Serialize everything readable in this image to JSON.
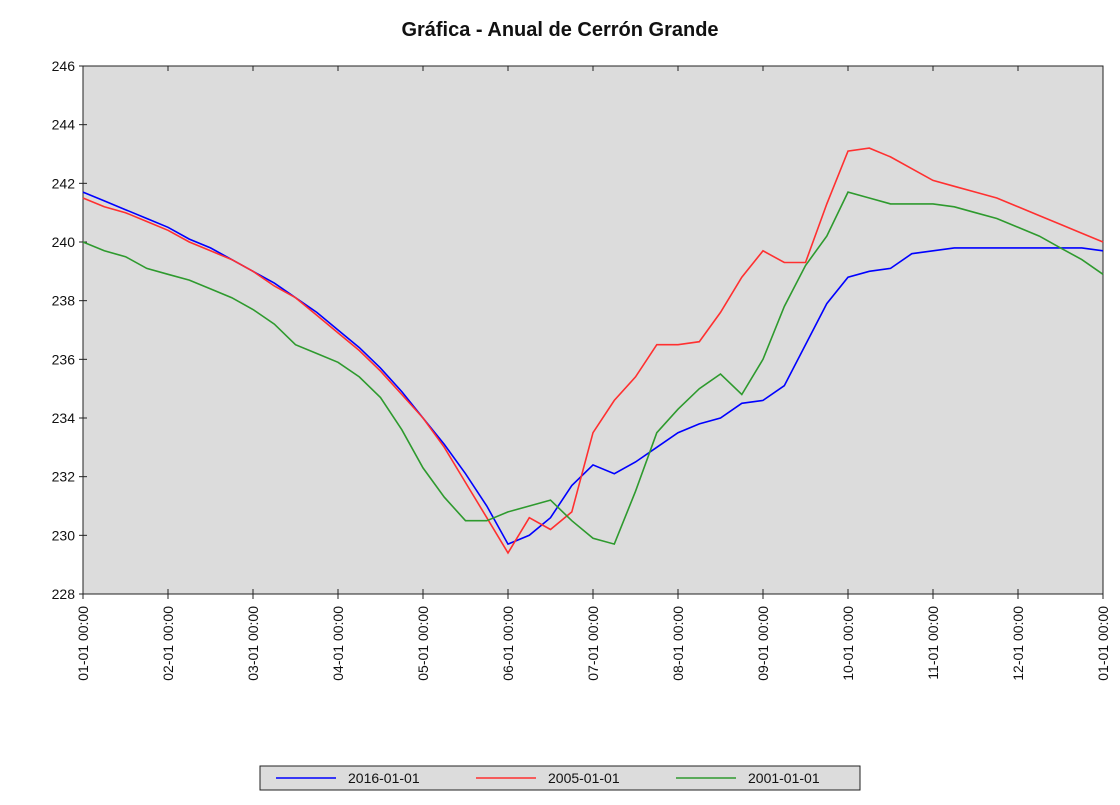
{
  "chart_data": {
    "type": "line",
    "title": "Gráfica - Anual de Cerrón Grande",
    "x": [
      0,
      0.25,
      0.5,
      0.75,
      1,
      1.25,
      1.5,
      1.75,
      2,
      2.25,
      2.5,
      2.75,
      3,
      3.25,
      3.5,
      3.75,
      4,
      4.25,
      4.5,
      4.75,
      5,
      5.25,
      5.5,
      5.75,
      6,
      6.25,
      6.5,
      6.75,
      7,
      7.25,
      7.5,
      7.75,
      8,
      8.25,
      8.5,
      8.75,
      9,
      9.25,
      9.5,
      9.75,
      10,
      10.25,
      10.5,
      10.75,
      11,
      11.25,
      11.5,
      11.75,
      12
    ],
    "series": [
      {
        "name": "2016-01-01",
        "color": "#0000ff",
        "values": [
          241.7,
          241.4,
          241.1,
          240.8,
          240.5,
          240.1,
          239.8,
          239.4,
          239.0,
          238.6,
          238.1,
          237.6,
          237.0,
          236.4,
          235.7,
          234.9,
          234.0,
          233.1,
          232.1,
          231.0,
          229.7,
          230.0,
          230.6,
          231.7,
          232.4,
          232.1,
          232.5,
          233.0,
          233.5,
          233.8,
          234.0,
          234.5,
          234.6,
          235.1,
          236.5,
          237.9,
          238.8,
          239.0,
          239.1,
          239.6,
          239.7,
          239.8,
          239.8,
          239.8,
          239.8,
          239.8,
          239.8,
          239.8,
          239.7
        ]
      },
      {
        "name": "2005-01-01",
        "color": "#ff3030",
        "values": [
          241.5,
          241.2,
          241.0,
          240.7,
          240.4,
          240.0,
          239.7,
          239.4,
          239.0,
          238.5,
          238.1,
          237.5,
          236.9,
          236.3,
          235.6,
          234.8,
          234.0,
          233.0,
          231.8,
          230.6,
          229.4,
          230.6,
          230.2,
          230.8,
          233.5,
          234.6,
          235.4,
          236.5,
          236.5,
          236.6,
          237.6,
          238.8,
          239.7,
          239.3,
          239.3,
          241.3,
          243.1,
          243.2,
          242.9,
          242.5,
          242.1,
          241.9,
          241.7,
          241.5,
          241.2,
          240.9,
          240.6,
          240.3,
          240.0
        ]
      },
      {
        "name": "2001-01-01",
        "color": "#2e9a2e",
        "values": [
          240.0,
          239.7,
          239.5,
          239.1,
          238.9,
          238.7,
          238.4,
          238.1,
          237.7,
          237.2,
          236.5,
          236.2,
          235.9,
          235.4,
          234.7,
          233.6,
          232.3,
          231.3,
          230.5,
          230.5,
          230.8,
          231.0,
          231.2,
          230.5,
          229.9,
          229.7,
          231.5,
          233.5,
          234.3,
          235.0,
          235.5,
          234.8,
          236.0,
          237.8,
          239.2,
          240.2,
          241.7,
          241.5,
          241.3,
          241.3,
          241.3,
          241.2,
          241.0,
          240.8,
          240.5,
          240.2,
          239.8,
          239.4,
          238.9
        ]
      }
    ],
    "xlim": [
      0,
      12
    ],
    "xticks": [
      {
        "value": 0,
        "label": "01-01 00:00"
      },
      {
        "value": 1,
        "label": "02-01 00:00"
      },
      {
        "value": 2,
        "label": "03-01 00:00"
      },
      {
        "value": 3,
        "label": "04-01 00:00"
      },
      {
        "value": 4,
        "label": "05-01 00:00"
      },
      {
        "value": 5,
        "label": "06-01 00:00"
      },
      {
        "value": 6,
        "label": "07-01 00:00"
      },
      {
        "value": 7,
        "label": "08-01 00:00"
      },
      {
        "value": 8,
        "label": "09-01 00:00"
      },
      {
        "value": 9,
        "label": "10-01 00:00"
      },
      {
        "value": 10,
        "label": "11-01 00:00"
      },
      {
        "value": 11,
        "label": "12-01 00:00"
      },
      {
        "value": 12,
        "label": "01-01 00:00"
      }
    ],
    "ylim": [
      228,
      246
    ],
    "yticks": [
      228,
      230,
      232,
      234,
      236,
      238,
      240,
      242,
      244,
      246
    ],
    "grid": false,
    "legend": "bottom"
  }
}
